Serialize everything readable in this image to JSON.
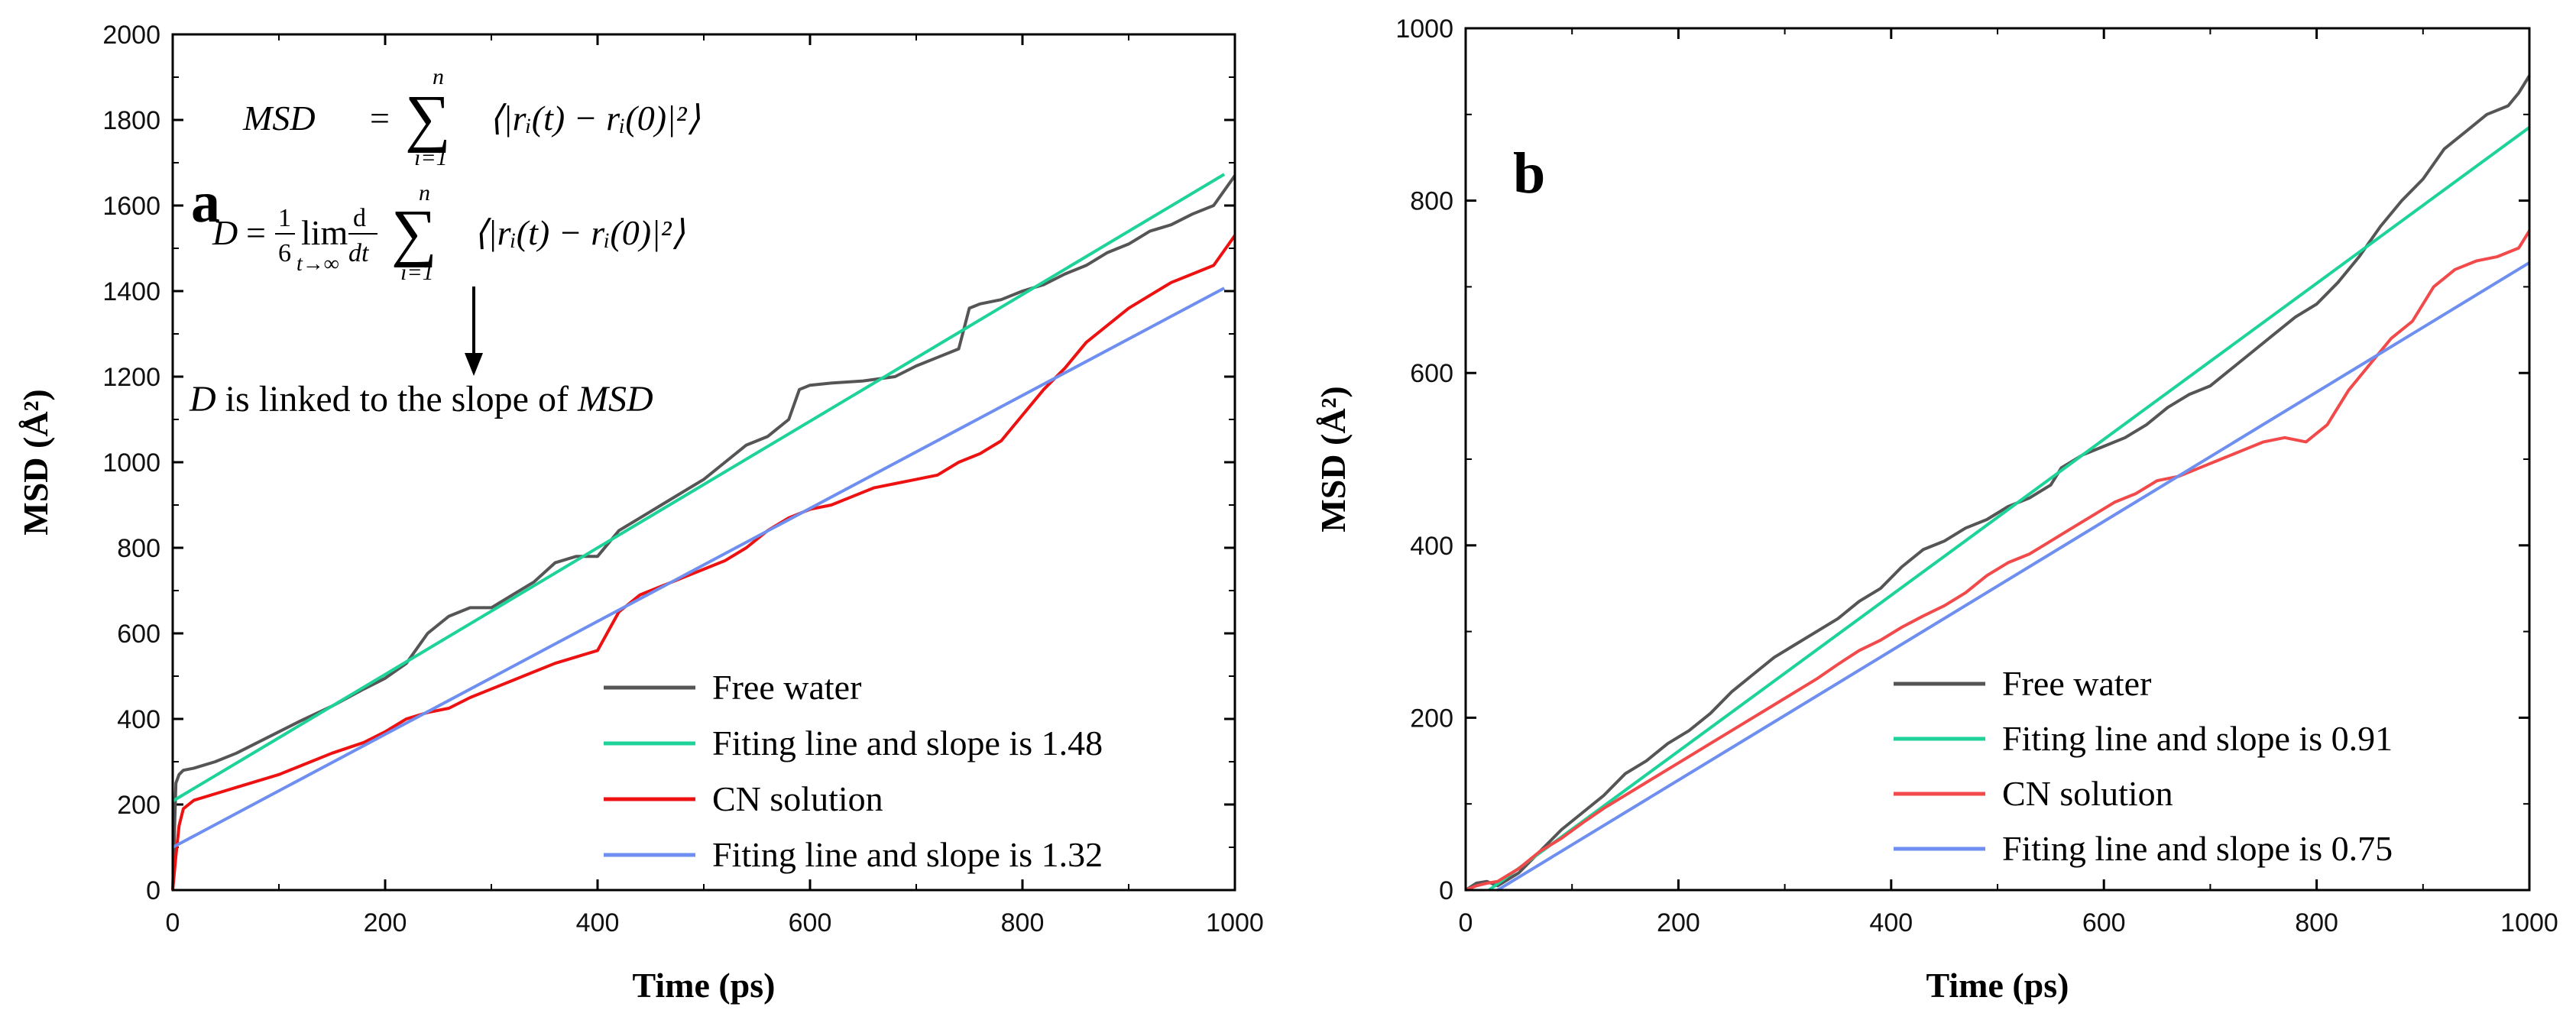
{
  "chart_data": [
    {
      "type": "line",
      "panel": "a",
      "xlabel": "Time (ps)",
      "ylabel": "MSD (Å²)",
      "xlim": [
        0,
        1000
      ],
      "ylim": [
        0,
        2000
      ],
      "xticks": [
        0,
        200,
        400,
        600,
        800,
        1000
      ],
      "yticks": [
        0,
        200,
        400,
        600,
        800,
        1000,
        1200,
        1400,
        1600,
        1800,
        2000
      ],
      "legend_position": "bottom-right",
      "series": [
        {
          "name": "Free water",
          "color": "#555555",
          "kind": "data",
          "x": [
            0,
            3,
            6,
            10,
            20,
            40,
            60,
            80,
            100,
            120,
            150,
            180,
            200,
            220,
            240,
            260,
            280,
            300,
            320,
            340,
            360,
            380,
            400,
            420,
            440,
            460,
            480,
            500,
            520,
            540,
            560,
            580,
            590,
            600,
            620,
            650,
            680,
            700,
            720,
            740,
            750,
            760,
            780,
            800,
            820,
            840,
            860,
            880,
            900,
            920,
            940,
            960,
            980,
            1000
          ],
          "y": [
            0,
            250,
            270,
            280,
            285,
            300,
            320,
            345,
            370,
            395,
            430,
            470,
            495,
            530,
            600,
            640,
            660,
            660,
            690,
            720,
            765,
            780,
            780,
            840,
            870,
            900,
            930,
            960,
            1000,
            1040,
            1060,
            1100,
            1170,
            1180,
            1185,
            1190,
            1200,
            1225,
            1245,
            1265,
            1360,
            1370,
            1380,
            1400,
            1415,
            1440,
            1460,
            1490,
            1510,
            1540,
            1555,
            1580,
            1600,
            1670
          ]
        },
        {
          "name": "Fiting line and slope is 1.48",
          "color": "#1ed39a",
          "kind": "fit",
          "x": [
            0,
            990
          ],
          "y": [
            208,
            1673
          ]
        },
        {
          "name": "CN solution",
          "color": "#ee1111",
          "kind": "data",
          "x": [
            0,
            3,
            6,
            10,
            20,
            40,
            60,
            80,
            100,
            120,
            150,
            180,
            200,
            220,
            240,
            260,
            280,
            300,
            320,
            340,
            360,
            380,
            400,
            420,
            440,
            460,
            480,
            500,
            520,
            540,
            560,
            580,
            600,
            620,
            640,
            660,
            680,
            700,
            720,
            740,
            760,
            780,
            800,
            820,
            840,
            860,
            880,
            900,
            920,
            940,
            960,
            980,
            1000
          ],
          "y": [
            0,
            80,
            150,
            190,
            210,
            225,
            240,
            255,
            270,
            290,
            320,
            345,
            370,
            400,
            415,
            425,
            450,
            470,
            490,
            510,
            530,
            545,
            560,
            650,
            690,
            710,
            730,
            750,
            770,
            800,
            840,
            870,
            890,
            900,
            920,
            940,
            950,
            960,
            970,
            1000,
            1020,
            1050,
            1110,
            1170,
            1220,
            1280,
            1320,
            1360,
            1390,
            1420,
            1440,
            1460,
            1530
          ]
        },
        {
          "name": "Fiting line and slope is 1.32",
          "color": "#6f8ff0",
          "kind": "fit",
          "x": [
            0,
            990
          ],
          "y": [
            100,
            1407
          ]
        }
      ],
      "annotations": {
        "formula_msd": "MSD = Σ_{i=1}^{n} ⟨|rᵢ(t) − rᵢ(0)|²⟩",
        "formula_d": "D = (1/6) lim_{t→∞} d/dt Σ_{i=1}^{n} ⟨|rᵢ(t) − rᵢ(0)|²⟩",
        "arrow_note": "D is linked to the slope of MSD"
      }
    },
    {
      "type": "line",
      "panel": "b",
      "xlabel": "Time (ps)",
      "ylabel": "MSD (Å²)",
      "xlim": [
        0,
        1000
      ],
      "ylim": [
        0,
        1000
      ],
      "xticks": [
        0,
        200,
        400,
        600,
        800,
        1000
      ],
      "yticks": [
        0,
        200,
        400,
        600,
        800,
        1000
      ],
      "legend_position": "bottom-right",
      "series": [
        {
          "name": "Free water",
          "color": "#555555",
          "kind": "data",
          "x": [
            0,
            10,
            20,
            30,
            50,
            70,
            90,
            110,
            130,
            150,
            170,
            190,
            210,
            230,
            250,
            270,
            290,
            310,
            330,
            350,
            370,
            390,
            410,
            430,
            450,
            470,
            490,
            510,
            530,
            550,
            560,
            580,
            600,
            620,
            640,
            660,
            680,
            700,
            720,
            740,
            760,
            780,
            800,
            820,
            840,
            860,
            880,
            900,
            920,
            940,
            960,
            980,
            990,
            1000
          ],
          "y": [
            0,
            8,
            10,
            5,
            20,
            45,
            70,
            90,
            110,
            135,
            150,
            170,
            185,
            205,
            230,
            250,
            270,
            285,
            300,
            315,
            335,
            350,
            375,
            395,
            405,
            420,
            430,
            445,
            455,
            470,
            490,
            505,
            515,
            525,
            540,
            560,
            575,
            585,
            605,
            625,
            645,
            665,
            680,
            705,
            735,
            770,
            800,
            825,
            860,
            880,
            900,
            910,
            925,
            945
          ]
        },
        {
          "name": "Fiting line and slope is 0.91",
          "color": "#1ed39a",
          "kind": "fit",
          "x": [
            22,
            1000
          ],
          "y": [
            0,
            885
          ]
        },
        {
          "name": "CN solution",
          "color": "#f24a4a",
          "kind": "data",
          "x": [
            0,
            10,
            20,
            30,
            50,
            70,
            90,
            110,
            130,
            150,
            170,
            190,
            210,
            230,
            250,
            270,
            290,
            310,
            330,
            350,
            370,
            390,
            410,
            430,
            450,
            470,
            490,
            510,
            530,
            550,
            570,
            590,
            610,
            630,
            650,
            670,
            690,
            710,
            730,
            750,
            770,
            790,
            810,
            830,
            850,
            870,
            890,
            910,
            930,
            950,
            970,
            990,
            1000
          ],
          "y": [
            0,
            5,
            8,
            10,
            25,
            45,
            60,
            78,
            95,
            110,
            125,
            140,
            155,
            170,
            185,
            200,
            215,
            230,
            245,
            262,
            278,
            290,
            305,
            318,
            330,
            345,
            365,
            380,
            390,
            405,
            420,
            435,
            450,
            460,
            475,
            480,
            490,
            500,
            510,
            520,
            525,
            520,
            540,
            580,
            610,
            640,
            660,
            700,
            720,
            730,
            735,
            745,
            765
          ]
        },
        {
          "name": "Fiting line and slope is 0.75",
          "color": "#6f8ff0",
          "kind": "fit",
          "x": [
            30,
            1000
          ],
          "y": [
            0,
            728
          ]
        }
      ]
    }
  ],
  "formula": {
    "msd_lhs": "MSD",
    "eq": "=",
    "sum": "∑",
    "sum_upper": "n",
    "sum_lower": "i=1",
    "msd_body": "⟨|rᵢ(t) − rᵢ(0)|²⟩",
    "d_lhs": "D",
    "frac_num": "1",
    "frac_den": "6",
    "lim": "lim",
    "lim_sub": "t→∞",
    "deriv_num": "d",
    "deriv_den": "dt"
  },
  "annotation": {
    "prefix": "D",
    "middle": " is linked to the slope of ",
    "suffix": "MSD"
  }
}
